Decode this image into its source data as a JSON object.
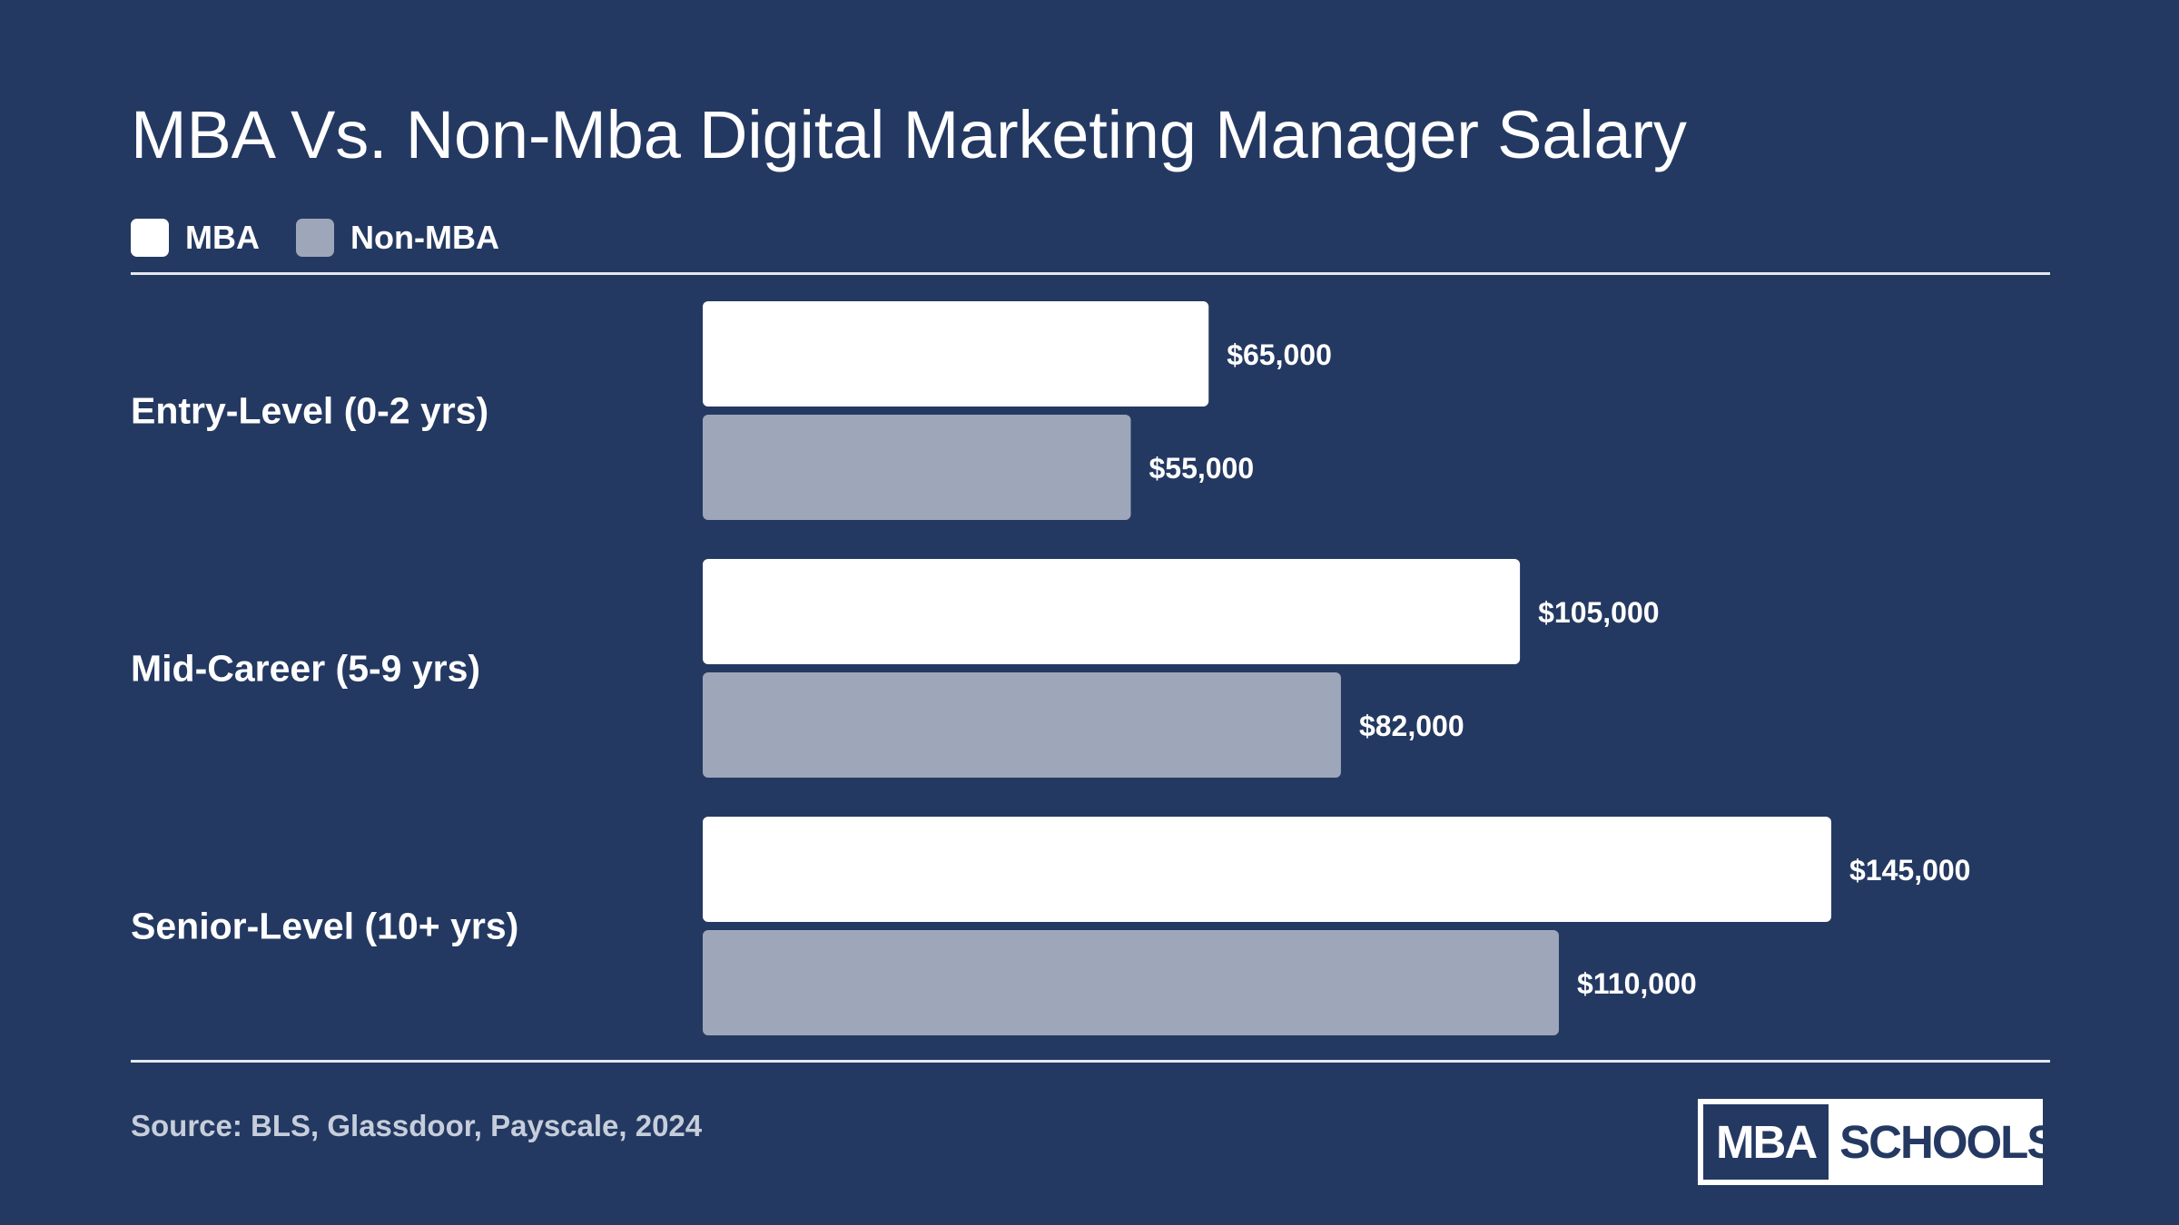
{
  "chart_data": {
    "type": "bar",
    "orientation": "horizontal",
    "title": "MBA Vs. Non-Mba Digital Marketing Manager Salary",
    "categories": [
      "Entry-Level (0-2 yrs)",
      "Mid-Career (5-9 yrs)",
      "Senior-Level (10+ yrs)"
    ],
    "series": [
      {
        "name": "MBA",
        "color": "#ffffff",
        "values": [
          65000,
          105000,
          145000
        ],
        "labels": [
          "$65,000",
          "$105,000",
          "$145,000"
        ]
      },
      {
        "name": "Non-MBA",
        "color": "#9ea6b9",
        "values": [
          55000,
          82000,
          110000
        ],
        "labels": [
          "$55,000",
          "$82,000",
          "$110,000"
        ]
      }
    ],
    "xlim": [
      0,
      145000
    ],
    "grid": false,
    "legend_position": "top-left"
  },
  "footer": {
    "source": "Source: BLS, Glassdoor, Payscale, 2024"
  },
  "logo": {
    "left_text": "MBA",
    "right_text": "SCHOOLS"
  },
  "colors": {
    "background": "#243962",
    "mba": "#ffffff",
    "non_mba": "#9ea6b9"
  }
}
